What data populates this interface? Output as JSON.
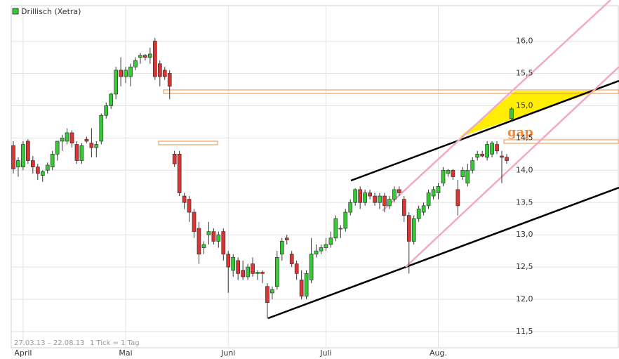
{
  "chart_data": {
    "type": "candlestick",
    "legend": "Drillisch (Xetra)",
    "date_range": "27.03.13 – 22.08.13",
    "tick_note": "1 Tick = 1 Tag",
    "annotations": [
      "gap"
    ],
    "up_color": "#33cc33",
    "down_color": "#dd3333",
    "grid": true,
    "ylim": [
      11.25,
      16.55
    ],
    "yticks": [
      {
        "value": 11.5,
        "label": "11,5"
      },
      {
        "value": 12,
        "label": "12,0"
      },
      {
        "value": 12.5,
        "label": "12,5"
      },
      {
        "value": 13,
        "label": "13,0"
      },
      {
        "value": 13.5,
        "label": "13,5"
      },
      {
        "value": 14,
        "label": "14,0"
      },
      {
        "value": 14.5,
        "label": "14,5"
      },
      {
        "value": 15,
        "label": "15,0"
      },
      {
        "value": 15.5,
        "label": "15,5"
      },
      {
        "value": 16,
        "label": "16,0"
      }
    ],
    "categories": [
      null,
      null,
      "April",
      null,
      null,
      null,
      null,
      null,
      null,
      null,
      null,
      null,
      null,
      null,
      null,
      null,
      null,
      null,
      null,
      null,
      null,
      null,
      null,
      "Mai",
      null,
      null,
      null,
      null,
      null,
      null,
      null,
      null,
      null,
      null,
      null,
      null,
      null,
      null,
      null,
      null,
      null,
      null,
      null,
      null,
      "Juni",
      null,
      null,
      null,
      null,
      null,
      null,
      null,
      null,
      null,
      null,
      null,
      null,
      null,
      null,
      null,
      null,
      null,
      null,
      null,
      "Juli",
      null,
      null,
      null,
      null,
      null,
      null,
      null,
      null,
      null,
      null,
      null,
      null,
      null,
      null,
      null,
      null,
      null,
      null,
      null,
      null,
      null,
      null,
      "Aug.",
      null,
      null,
      null,
      null,
      null,
      null,
      null,
      null,
      null,
      null,
      null,
      null,
      null,
      null,
      null
    ],
    "open": [
      14.38,
      14.05,
      14.05,
      14.45,
      14.15,
      14.05,
      13.92,
      14.0,
      14.05,
      14.25,
      14.45,
      14.45,
      14.58,
      14.4,
      14.15,
      14.48,
      14.42,
      14.35,
      14.45,
      14.85,
      15.0,
      15.18,
      15.55,
      15.45,
      15.45,
      15.6,
      15.75,
      15.78,
      15.75,
      16.0,
      15.65,
      15.55,
      15.5,
      14.25,
      14.25,
      13.6,
      13.55,
      13.35,
      13.1,
      12.8,
      13.0,
      13.05,
      12.9,
      13.05,
      12.7,
      12.45,
      12.6,
      12.45,
      12.35,
      12.55,
      12.4,
      12.42,
      12.2,
      12.1,
      12.2,
      12.7,
      12.95,
      12.7,
      12.55,
      12.3,
      12.05,
      12.3,
      12.7,
      12.75,
      12.8,
      12.85,
      12.95,
      13.1,
      13.1,
      13.35,
      13.5,
      13.7,
      13.5,
      13.65,
      13.6,
      13.5,
      13.6,
      13.45,
      13.55,
      13.7,
      13.55,
      13.3,
      12.9,
      13.25,
      13.35,
      13.45,
      13.6,
      13.65,
      13.8,
      13.95,
      14.0,
      13.7,
      13.9,
      13.8,
      14.0,
      14.2,
      14.25,
      14.2,
      14.25,
      14.4,
      14.22,
      14.2,
      14.8
    ],
    "high": [
      14.45,
      14.2,
      14.45,
      14.48,
      14.22,
      14.1,
      14.0,
      14.12,
      14.3,
      14.45,
      14.55,
      14.65,
      14.62,
      14.45,
      14.42,
      14.52,
      14.65,
      14.45,
      14.88,
      15.05,
      15.2,
      15.6,
      15.75,
      15.6,
      15.65,
      15.75,
      15.82,
      15.8,
      15.9,
      16.05,
      15.7,
      15.6,
      15.55,
      14.3,
      14.3,
      13.65,
      13.6,
      13.4,
      13.2,
      12.9,
      13.2,
      13.1,
      13.05,
      13.1,
      12.75,
      12.7,
      12.65,
      12.6,
      12.55,
      12.65,
      12.45,
      12.45,
      12.25,
      12.2,
      12.75,
      12.95,
      13.0,
      12.75,
      12.6,
      12.45,
      12.45,
      12.95,
      12.85,
      12.85,
      12.95,
      13.05,
      13.3,
      13.15,
      13.4,
      13.55,
      13.72,
      13.75,
      13.7,
      13.7,
      13.65,
      13.65,
      13.65,
      13.6,
      13.75,
      13.75,
      13.6,
      13.35,
      13.3,
      13.45,
      13.5,
      13.7,
      13.75,
      13.8,
      14.05,
      14.02,
      14.02,
      13.85,
      14.05,
      14.1,
      14.2,
      14.3,
      14.3,
      14.45,
      14.45,
      14.45,
      14.3,
      14.25,
      14.98
    ],
    "low": [
      13.95,
      13.9,
      14.0,
      14.1,
      13.95,
      13.85,
      13.82,
      13.95,
      14.0,
      14.15,
      14.3,
      14.4,
      14.35,
      14.1,
      14.1,
      14.42,
      14.2,
      14.2,
      14.4,
      14.8,
      14.95,
      15.1,
      15.3,
      15.35,
      15.3,
      15.55,
      15.65,
      15.7,
      15.65,
      15.4,
      15.3,
      15.4,
      15.1,
      14.05,
      13.6,
      13.4,
      13.2,
      12.95,
      12.55,
      12.7,
      12.85,
      12.85,
      12.8,
      12.6,
      12.1,
      12.35,
      12.3,
      12.3,
      12.3,
      12.35,
      12.3,
      12.25,
      11.7,
      12.0,
      12.15,
      12.6,
      12.85,
      12.5,
      12.3,
      12.0,
      12.0,
      12.25,
      12.65,
      12.7,
      12.75,
      12.8,
      12.9,
      12.95,
      13.05,
      13.3,
      13.45,
      13.4,
      13.45,
      13.55,
      13.45,
      13.4,
      13.35,
      13.4,
      13.5,
      13.6,
      13.2,
      12.4,
      12.85,
      13.2,
      13.3,
      13.4,
      13.55,
      13.55,
      13.75,
      13.9,
      13.85,
      13.3,
      13.85,
      13.75,
      13.95,
      14.15,
      14.2,
      14.15,
      14.2,
      14.25,
      13.8,
      14.1,
      14.75
    ],
    "close": [
      14.02,
      14.15,
      14.4,
      14.15,
      14.05,
      13.95,
      13.98,
      14.08,
      14.25,
      14.45,
      14.5,
      14.58,
      14.42,
      14.15,
      14.38,
      14.45,
      14.35,
      14.4,
      14.85,
      15.0,
      15.18,
      15.55,
      15.45,
      15.55,
      15.6,
      15.7,
      15.78,
      15.75,
      15.8,
      15.45,
      15.45,
      15.45,
      15.3,
      14.1,
      13.65,
      13.5,
      13.35,
      13.05,
      12.7,
      12.85,
      13.05,
      12.9,
      13.0,
      12.7,
      12.5,
      12.65,
      12.4,
      12.35,
      12.5,
      12.4,
      12.42,
      12.4,
      11.95,
      12.15,
      12.65,
      12.9,
      12.92,
      12.55,
      12.4,
      12.05,
      12.4,
      12.7,
      12.75,
      12.8,
      12.85,
      12.95,
      13.25,
      13.1,
      13.35,
      13.5,
      13.7,
      13.5,
      13.65,
      13.6,
      13.5,
      13.6,
      13.45,
      13.55,
      13.7,
      13.65,
      13.3,
      12.9,
      13.25,
      13.4,
      13.45,
      13.65,
      13.7,
      13.75,
      14.0,
      14.0,
      13.9,
      13.45,
      14.0,
      14.0,
      14.15,
      14.25,
      14.22,
      14.4,
      14.42,
      14.3,
      14.2,
      14.15,
      14.95
    ]
  }
}
